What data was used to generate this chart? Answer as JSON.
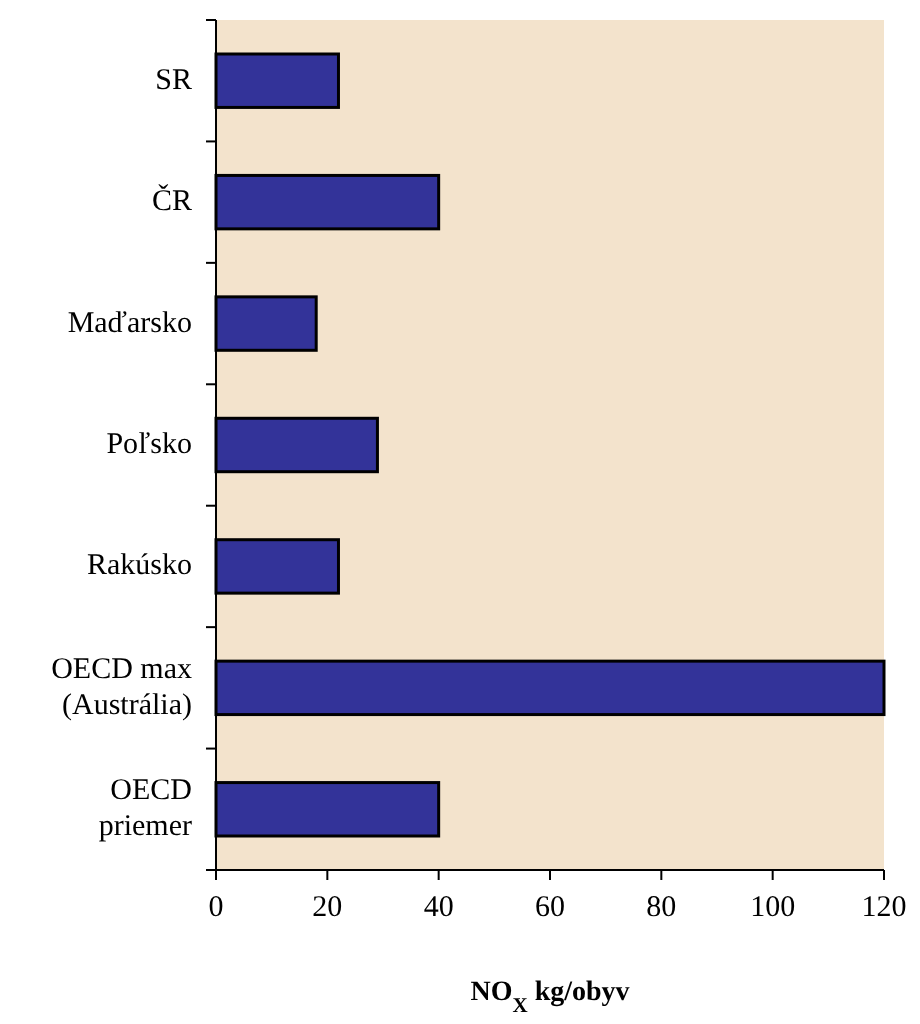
{
  "chart_data": {
    "type": "bar",
    "orientation": "horizontal",
    "xlabel": "NO$_{X}$ kg/obyv",
    "categories": [
      "SR",
      "ČR",
      "Maďarsko",
      "Poľsko",
      "Rakúsko",
      "OECD max (Austrália)",
      "OECD priemer"
    ],
    "values": [
      22,
      40,
      18,
      29,
      22,
      120,
      40
    ],
    "color": "#333399",
    "xlim": [
      0,
      120
    ],
    "xticks": [
      0,
      20,
      40,
      60,
      80,
      100,
      120
    ]
  }
}
